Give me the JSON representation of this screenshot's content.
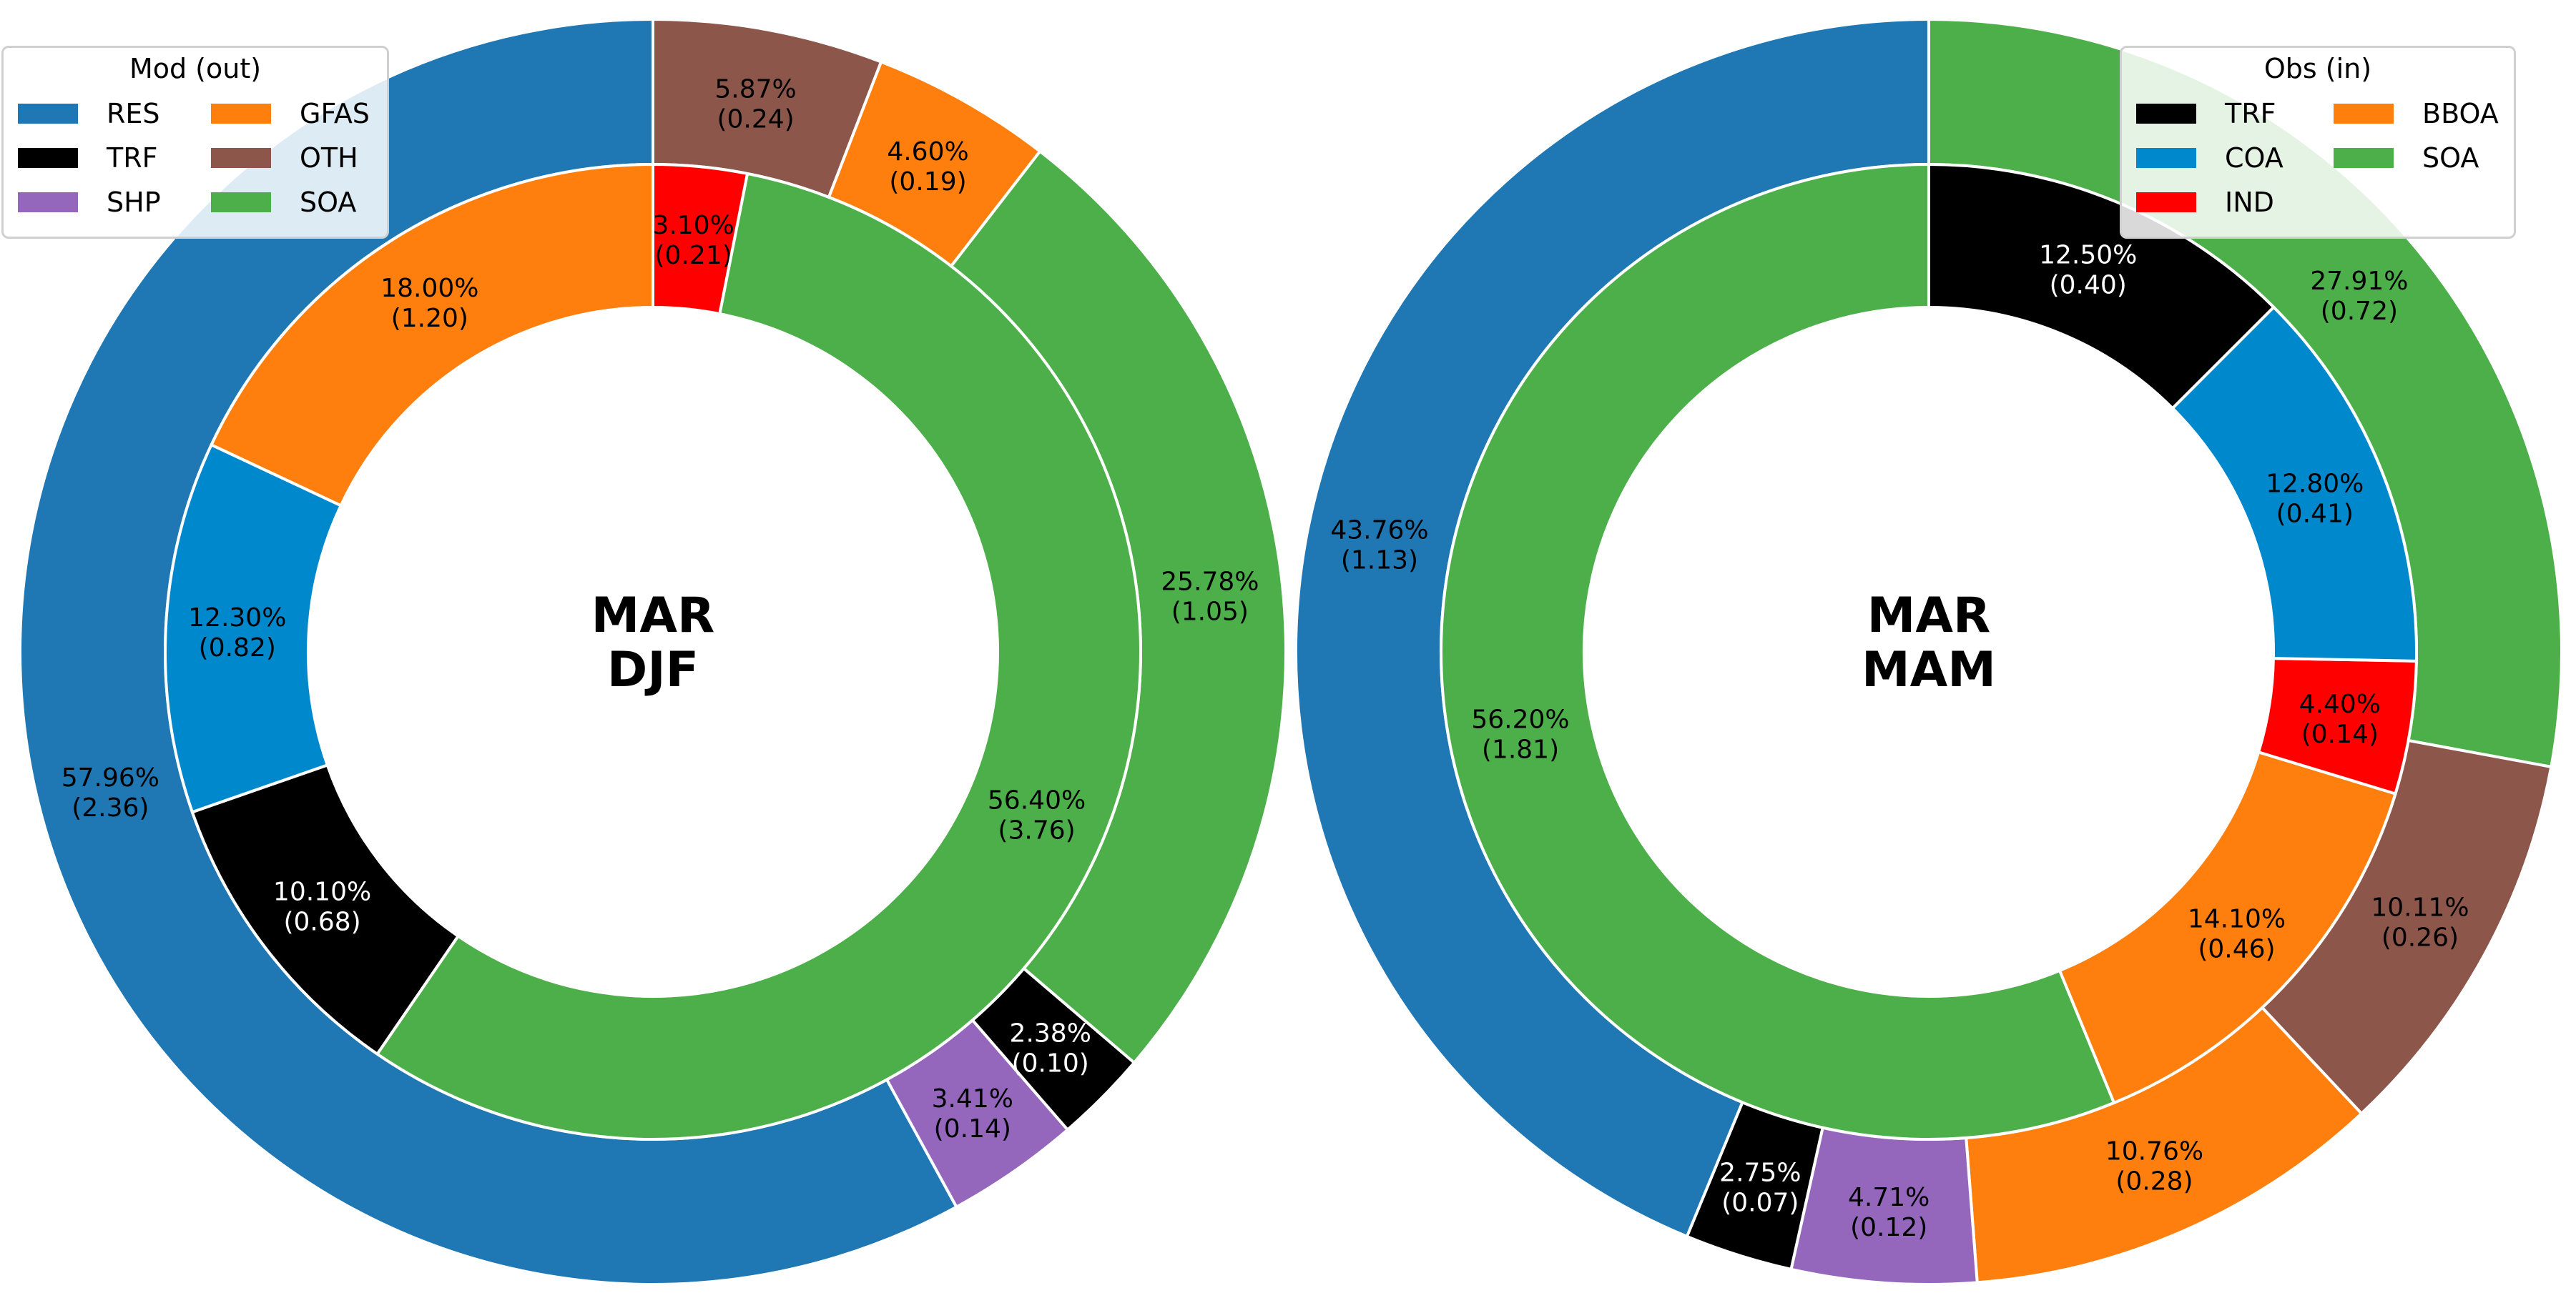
{
  "chart_data": [
    {
      "type": "pie",
      "title": "MAR\nDJF",
      "title_lines": [
        "MAR",
        "DJF"
      ],
      "outer_ring": {
        "legend_title": "Mod (out)",
        "slices": [
          {
            "name": "RES",
            "color": "#1f77b4",
            "percent": 57.96,
            "value": 2.36,
            "label_pct": "57.96%",
            "label_val": "(2.36)"
          },
          {
            "name": "SHP",
            "color": "#9467bd",
            "percent": 3.41,
            "value": 0.14,
            "label_pct": "3.41%",
            "label_val": "(0.14)"
          },
          {
            "name": "TRF",
            "color": "#000000",
            "percent": 2.38,
            "value": 0.1,
            "label_pct": "2.38%",
            "label_val": "(0.10)"
          },
          {
            "name": "SOA",
            "color": "#4daf4a",
            "percent": 25.78,
            "value": 1.05,
            "label_pct": "25.78%",
            "label_val": "(1.05)"
          },
          {
            "name": "GFAS",
            "color": "#ff7f0e",
            "percent": 4.6,
            "value": 0.19,
            "label_pct": "4.60%",
            "label_val": "(0.19)"
          },
          {
            "name": "OTH",
            "color": "#8c564b",
            "percent": 5.87,
            "value": 0.24,
            "label_pct": "5.87%",
            "label_val": "(0.24)"
          }
        ]
      },
      "inner_ring": {
        "slices": [
          {
            "name": "IND",
            "color": "#ff0000",
            "percent": 3.1,
            "value": 0.21,
            "label_pct": "3.10%",
            "label_val": "(0.21)"
          },
          {
            "name": "SOA",
            "color": "#4daf4a",
            "percent": 56.4,
            "value": 3.76,
            "label_pct": "56.40%",
            "label_val": "(3.76)"
          },
          {
            "name": "TRF",
            "color": "#000000",
            "percent": 10.1,
            "value": 0.68,
            "label_pct": "10.10%",
            "label_val": "(0.68)"
          },
          {
            "name": "COA",
            "color": "#0088cc",
            "percent": 12.3,
            "value": 0.82,
            "label_pct": "12.30%",
            "label_val": "(0.82)"
          },
          {
            "name": "BBOA",
            "color": "#ff7f0e",
            "percent": 18.0,
            "value": 1.2,
            "label_pct": "18.00%",
            "label_val": "(1.20)"
          }
        ]
      }
    },
    {
      "type": "pie",
      "title": "MAR\nMAM",
      "title_lines": [
        "MAR",
        "MAM"
      ],
      "outer_ring": {
        "slices": [
          {
            "name": "SOA",
            "color": "#4daf4a",
            "percent": 27.91,
            "value": 0.72,
            "label_pct": "27.91%",
            "label_val": "(0.72)"
          },
          {
            "name": "OTH",
            "color": "#8c564b",
            "percent": 10.11,
            "value": 0.26,
            "label_pct": "10.11%",
            "label_val": "(0.26)"
          },
          {
            "name": "GFAS",
            "color": "#ff7f0e",
            "percent": 10.76,
            "value": 0.28,
            "label_pct": "10.76%",
            "label_val": "(0.28)"
          },
          {
            "name": "SHP",
            "color": "#9467bd",
            "percent": 4.71,
            "value": 0.12,
            "label_pct": "4.71%",
            "label_val": "(0.12)"
          },
          {
            "name": "TRF",
            "color": "#000000",
            "percent": 2.75,
            "value": 0.07,
            "label_pct": "2.75%",
            "label_val": "(0.07)"
          },
          {
            "name": "RES",
            "color": "#1f77b4",
            "percent": 43.76,
            "value": 1.13,
            "label_pct": "43.76%",
            "label_val": "(1.13)"
          }
        ]
      },
      "inner_ring": {
        "legend_title": "Obs (in)",
        "slices": [
          {
            "name": "SOA",
            "color": "#4daf4a",
            "percent": 56.2,
            "value": 1.81,
            "label_pct": "56.20%",
            "label_val": "(1.81)"
          },
          {
            "name": "BBOA",
            "color": "#ff7f0e",
            "percent": 14.1,
            "value": 0.46,
            "label_pct": "14.10%",
            "label_val": "(0.46)"
          },
          {
            "name": "IND",
            "color": "#ff0000",
            "percent": 4.4,
            "value": 0.14,
            "label_pct": "4.40%",
            "label_val": "(0.14)"
          },
          {
            "name": "COA",
            "color": "#0088cc",
            "percent": 12.8,
            "value": 0.41,
            "label_pct": "12.80%",
            "label_val": "(0.41)"
          },
          {
            "name": "TRF",
            "color": "#000000",
            "percent": 12.5,
            "value": 0.4,
            "label_pct": "12.50%",
            "label_val": "(0.40)"
          }
        ]
      }
    }
  ],
  "legends": {
    "left": {
      "title": "Mod (out)",
      "entries": [
        {
          "label": "RES",
          "color": "#1f77b4"
        },
        {
          "label": "GFAS",
          "color": "#ff7f0e"
        },
        {
          "label": "TRF",
          "color": "#000000"
        },
        {
          "label": "OTH",
          "color": "#8c564b"
        },
        {
          "label": "SHP",
          "color": "#9467bd"
        },
        {
          "label": "SOA",
          "color": "#4daf4a"
        }
      ]
    },
    "right": {
      "title": "Obs (in)",
      "entries": [
        {
          "label": "TRF",
          "color": "#000000"
        },
        {
          "label": "BBOA",
          "color": "#ff7f0e"
        },
        {
          "label": "COA",
          "color": "#0088cc"
        },
        {
          "label": "SOA",
          "color": "#4daf4a"
        },
        {
          "label": "IND",
          "color": "#ff0000"
        }
      ]
    }
  }
}
